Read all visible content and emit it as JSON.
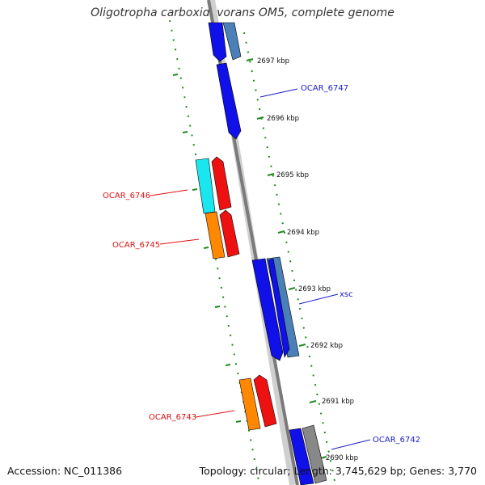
{
  "genome": {
    "title": "Oligotropha carboxidovorans OM5, complete genome",
    "accession_text": "Accession: NC_011386",
    "summary_text": "Topology: circular; Length: 3,745,629 bp; Genes: 3,770"
  },
  "ticks": [
    "2697 kbp",
    "2696 kbp",
    "2695 kbp",
    "2694 kbp",
    "2693 kbp",
    "2692 kbp",
    "2691 kbp",
    "2690 kbp"
  ],
  "gene_labels": [
    {
      "text": "OCAR_6747",
      "color": "#1a1acc"
    },
    {
      "text": "OCAR_6746",
      "color": "#e01010"
    },
    {
      "text": "OCAR_6745",
      "color": "#e01010"
    },
    {
      "text": "xsc",
      "color": "#1a1acc"
    },
    {
      "text": "OCAR_6743",
      "color": "#e01010"
    },
    {
      "text": "OCAR_6742",
      "color": "#1a1acc"
    }
  ],
  "colors": {
    "blue": "#1010e8",
    "steel": "#4a7fb8",
    "red": "#ee1111",
    "orange": "#ff8800",
    "cyan": "#19e6ee",
    "gray": "#888888",
    "axis": "#7a7a7a",
    "dots": "#1f8a1f"
  }
}
